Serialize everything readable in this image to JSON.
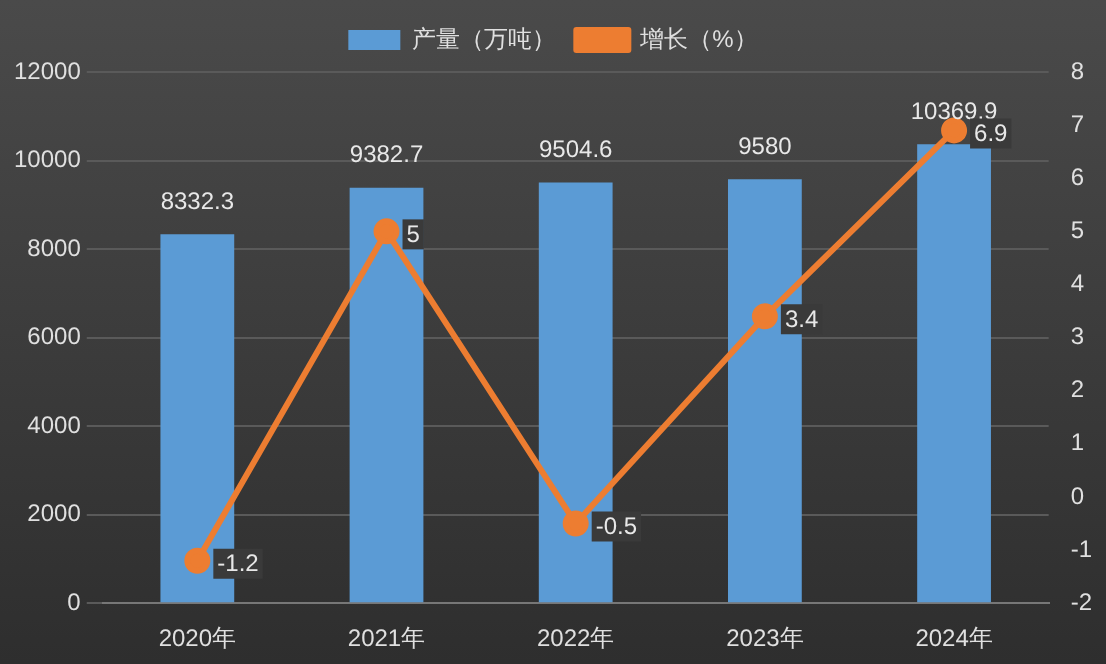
{
  "chart_data": {
    "type": "bar",
    "categories": [
      "2020年",
      "2021年",
      "2022年",
      "2023年",
      "2024年"
    ],
    "series": [
      {
        "name": "产量（万吨）",
        "color": "#5b9bd5",
        "values": [
          8332.3,
          9382.7,
          9504.6,
          9580,
          10369.9
        ]
      },
      {
        "name": "增长（%）",
        "type": "line",
        "axis": "y2",
        "color": "#ed7d31",
        "values": [
          -1.2,
          5,
          -0.5,
          3.4,
          6.9
        ]
      }
    ],
    "ylim": [
      0,
      12000
    ],
    "yticks": [
      0,
      2000,
      4000,
      6000,
      8000,
      10000,
      12000
    ],
    "y2lim": [
      -2,
      8
    ],
    "y2ticks": [
      -2,
      -1,
      0,
      1,
      2,
      3,
      4,
      5,
      6,
      7,
      8
    ],
    "grid": "y",
    "legend": "top",
    "marker": "circle",
    "data_labels": true
  }
}
